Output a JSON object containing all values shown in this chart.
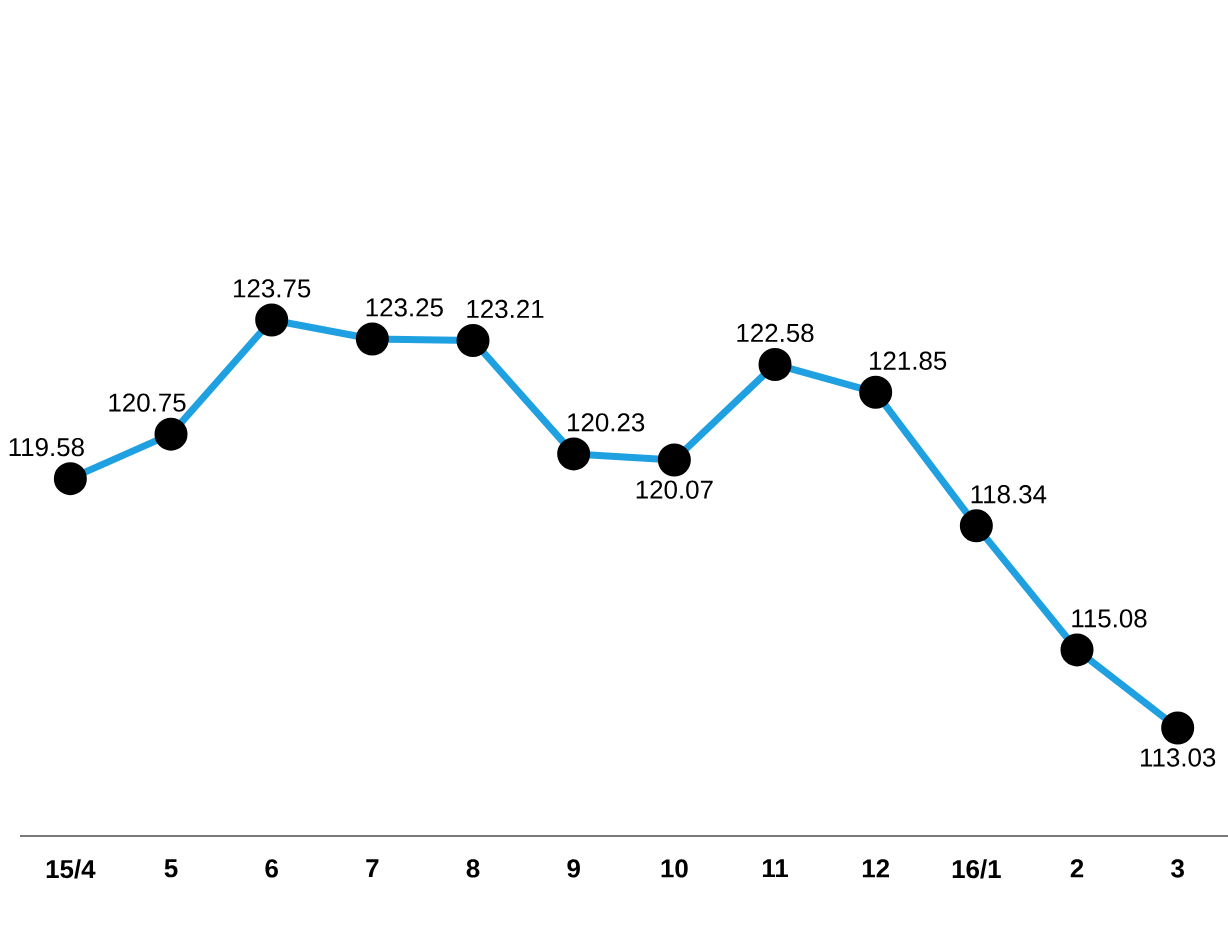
{
  "chart_data": {
    "type": "line",
    "categories": [
      "15/4",
      "5",
      "6",
      "7",
      "8",
      "9",
      "10",
      "11",
      "12",
      "16/1",
      "2",
      "3"
    ],
    "series": [
      {
        "color": "#1fa0e0",
        "values": [
          119.58,
          120.75,
          123.75,
          123.25,
          123.21,
          120.23,
          120.07,
          122.58,
          121.85,
          118.34,
          115.08,
          113.03
        ]
      }
    ],
    "data_labels": true,
    "marker": "circle",
    "line_style": "solid"
  }
}
